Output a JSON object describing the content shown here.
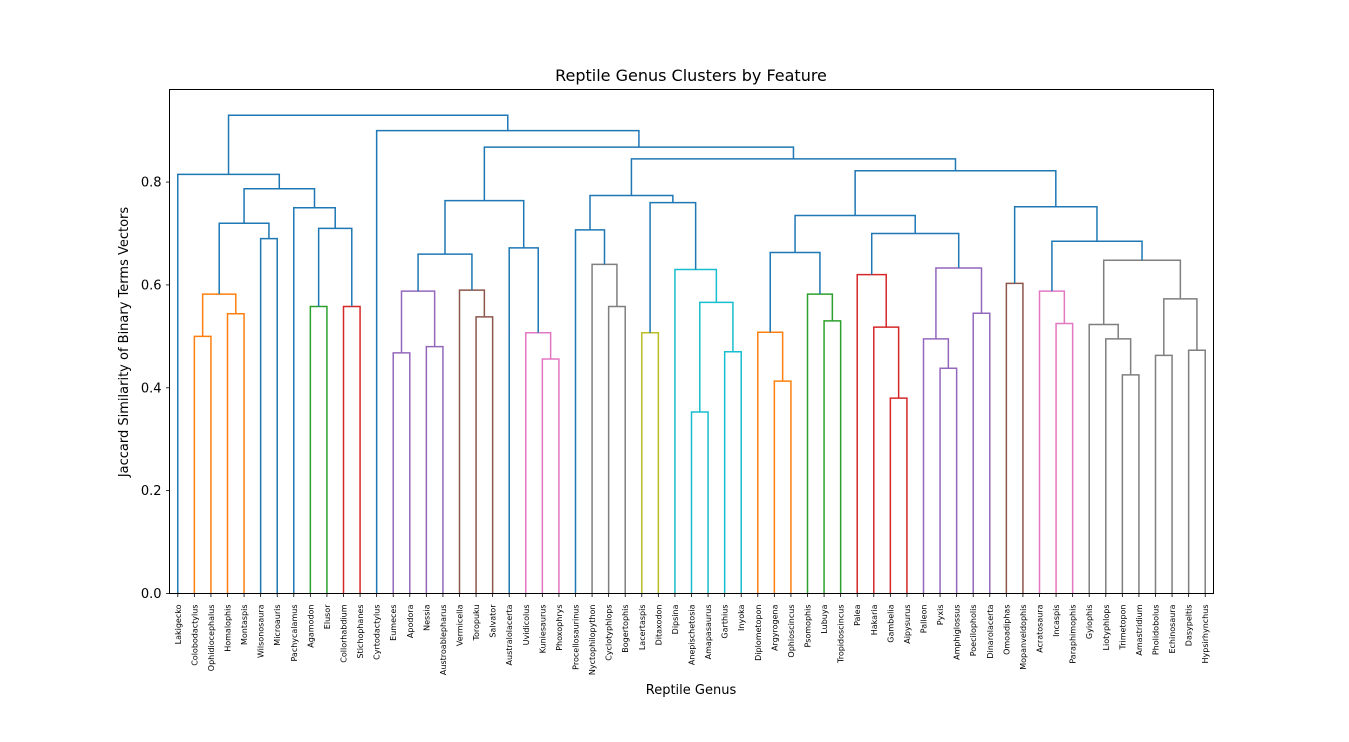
{
  "chart_data": {
    "type": "dendrogram",
    "title": "Reptile Genus Clusters by Feature",
    "xlabel": "Reptile Genus",
    "ylabel": "Jaccard Similarity of Binary Terms Vectors",
    "ylim": [
      0,
      0.98
    ],
    "yticks": [
      0.0,
      0.2,
      0.4,
      0.6,
      0.8
    ],
    "ytick_labels": [
      "0.0",
      "0.2",
      "0.4",
      "0.6",
      "0.8"
    ],
    "grid": false,
    "leaves": [
      "Lakigecko",
      "Colobodactylus",
      "Ophidiocephalus",
      "Homalophis",
      "Montaspis",
      "Wilsonosaura",
      "Microauris",
      "Pachycalamus",
      "Agamodon",
      "Elusor",
      "Collorhabdium",
      "Stichophanes",
      "Cyrtodactylus",
      "Eumeces",
      "Apodora",
      "Nessia",
      "Austroablepharus",
      "Vermicella",
      "Toropuku",
      "Salvator",
      "Australolacerta",
      "Uvidicolus",
      "Kuniesaurus",
      "Phoxophrys",
      "Procellosaurinus",
      "Nyctophilopython",
      "Cyclotyphlops",
      "Bogertophis",
      "Lacertaspis",
      "Ditaxodon",
      "Dipsina",
      "Anepischetosia",
      "Amapasaurus",
      "Garthius",
      "Inyoka",
      "Diplometopon",
      "Argyrogena",
      "Ophioscincus",
      "Psomophis",
      "Lubuya",
      "Tropidoscincus",
      "Palea",
      "Hakaria",
      "Gambelia",
      "Aipysurus",
      "Palleon",
      "Pyxis",
      "Amphiglossus",
      "Poecilopholis",
      "Dinarolacerta",
      "Omoadiphas",
      "Mopanveldophis",
      "Acratosaura",
      "Incaspis",
      "Paraphimophis",
      "Gyiophis",
      "Liotyphlops",
      "Trimetopon",
      "Amastridium",
      "Pholidobolus",
      "Echinosaura",
      "Dasypeltis",
      "Hypsirhynchus"
    ],
    "merges": [
      {
        "a": 1,
        "b": 2,
        "h": 0.5,
        "c": "#ff7f0e"
      },
      {
        "a": 3,
        "b": 4,
        "h": 0.544,
        "c": "#ff7f0e"
      },
      {
        "a": 63,
        "b": 64,
        "h": 0.582,
        "c": "#ff7f0e"
      },
      {
        "a": 5,
        "b": 6,
        "h": 0.69,
        "c": "#1f77b4"
      },
      {
        "a": 65,
        "b": 66,
        "h": 0.72,
        "c": "#1f77b4"
      },
      {
        "a": 8,
        "b": 9,
        "h": 0.558,
        "c": "#2ca02c"
      },
      {
        "a": 10,
        "b": 11,
        "h": 0.558,
        "c": "#d62728"
      },
      {
        "a": 68,
        "b": 69,
        "h": 0.71,
        "c": "#1f77b4"
      },
      {
        "a": 7,
        "b": 70,
        "h": 0.75,
        "c": "#1f77b4"
      },
      {
        "a": 67,
        "b": 71,
        "h": 0.787,
        "c": "#1f77b4"
      },
      {
        "a": 0,
        "b": 72,
        "h": 0.815,
        "c": "#1f77b4"
      },
      {
        "a": 13,
        "b": 14,
        "h": 0.468,
        "c": "#9467bd"
      },
      {
        "a": 15,
        "b": 16,
        "h": 0.48,
        "c": "#9467bd"
      },
      {
        "a": 74,
        "b": 75,
        "h": 0.588,
        "c": "#9467bd"
      },
      {
        "a": 18,
        "b": 19,
        "h": 0.538,
        "c": "#8c564b"
      },
      {
        "a": 17,
        "b": 77,
        "h": 0.59,
        "c": "#8c564b"
      },
      {
        "a": 76,
        "b": 78,
        "h": 0.66,
        "c": "#1f77b4"
      },
      {
        "a": 22,
        "b": 23,
        "h": 0.456,
        "c": "#e377c2"
      },
      {
        "a": 21,
        "b": 80,
        "h": 0.507,
        "c": "#e377c2"
      },
      {
        "a": 20,
        "b": 81,
        "h": 0.672,
        "c": "#1f77b4"
      },
      {
        "a": 79,
        "b": 82,
        "h": 0.764,
        "c": "#1f77b4"
      },
      {
        "a": 26,
        "b": 27,
        "h": 0.558,
        "c": "#7f7f7f"
      },
      {
        "a": 25,
        "b": 84,
        "h": 0.64,
        "c": "#7f7f7f"
      },
      {
        "a": 24,
        "b": 85,
        "h": 0.707,
        "c": "#1f77b4"
      },
      {
        "a": 28,
        "b": 29,
        "h": 0.507,
        "c": "#bcbd22"
      },
      {
        "a": 31,
        "b": 32,
        "h": 0.353,
        "c": "#17becf"
      },
      {
        "a": 33,
        "b": 34,
        "h": 0.47,
        "c": "#17becf"
      },
      {
        "a": 88,
        "b": 89,
        "h": 0.566,
        "c": "#17becf"
      },
      {
        "a": 30,
        "b": 90,
        "h": 0.63,
        "c": "#17becf"
      },
      {
        "a": 87,
        "b": 91,
        "h": 0.76,
        "c": "#1f77b4"
      },
      {
        "a": 86,
        "b": 92,
        "h": 0.774,
        "c": "#1f77b4"
      },
      {
        "a": 36,
        "b": 37,
        "h": 0.413,
        "c": "#ff7f0e"
      },
      {
        "a": 35,
        "b": 94,
        "h": 0.508,
        "c": "#ff7f0e"
      },
      {
        "a": 39,
        "b": 40,
        "h": 0.53,
        "c": "#2ca02c"
      },
      {
        "a": 38,
        "b": 96,
        "h": 0.582,
        "c": "#2ca02c"
      },
      {
        "a": 95,
        "b": 97,
        "h": 0.663,
        "c": "#1f77b4"
      },
      {
        "a": 43,
        "b": 44,
        "h": 0.38,
        "c": "#d62728"
      },
      {
        "a": 42,
        "b": 99,
        "h": 0.518,
        "c": "#d62728"
      },
      {
        "a": 41,
        "b": 100,
        "h": 0.62,
        "c": "#d62728"
      },
      {
        "a": 46,
        "b": 47,
        "h": 0.438,
        "c": "#9467bd"
      },
      {
        "a": 45,
        "b": 102,
        "h": 0.495,
        "c": "#9467bd"
      },
      {
        "a": 48,
        "b": 49,
        "h": 0.545,
        "c": "#9467bd"
      },
      {
        "a": 103,
        "b": 104,
        "h": 0.633,
        "c": "#9467bd"
      },
      {
        "a": 101,
        "b": 105,
        "h": 0.7,
        "c": "#1f77b4"
      },
      {
        "a": 98,
        "b": 106,
        "h": 0.735,
        "c": "#1f77b4"
      },
      {
        "a": 50,
        "b": 51,
        "h": 0.603,
        "c": "#8c564b"
      },
      {
        "a": 53,
        "b": 54,
        "h": 0.525,
        "c": "#e377c2"
      },
      {
        "a": 52,
        "b": 109,
        "h": 0.588,
        "c": "#e377c2"
      },
      {
        "a": 57,
        "b": 58,
        "h": 0.425,
        "c": "#7f7f7f"
      },
      {
        "a": 56,
        "b": 111,
        "h": 0.495,
        "c": "#7f7f7f"
      },
      {
        "a": 55,
        "b": 112,
        "h": 0.523,
        "c": "#7f7f7f"
      },
      {
        "a": 59,
        "b": 60,
        "h": 0.463,
        "c": "#7f7f7f"
      },
      {
        "a": 61,
        "b": 62,
        "h": 0.473,
        "c": "#7f7f7f"
      },
      {
        "a": 114,
        "b": 115,
        "h": 0.573,
        "c": "#7f7f7f"
      },
      {
        "a": 113,
        "b": 116,
        "h": 0.648,
        "c": "#7f7f7f"
      },
      {
        "a": 110,
        "b": 117,
        "h": 0.685,
        "c": "#1f77b4"
      },
      {
        "a": 108,
        "b": 118,
        "h": 0.752,
        "c": "#1f77b4"
      },
      {
        "a": 107,
        "b": 119,
        "h": 0.822,
        "c": "#1f77b4"
      },
      {
        "a": 93,
        "b": 120,
        "h": 0.845,
        "c": "#1f77b4"
      },
      {
        "a": 83,
        "b": 121,
        "h": 0.868,
        "c": "#1f77b4"
      },
      {
        "a": 12,
        "b": 122,
        "h": 0.9,
        "c": "#1f77b4"
      },
      {
        "a": 73,
        "b": 123,
        "h": 0.93,
        "c": "#1f77b4"
      }
    ]
  }
}
